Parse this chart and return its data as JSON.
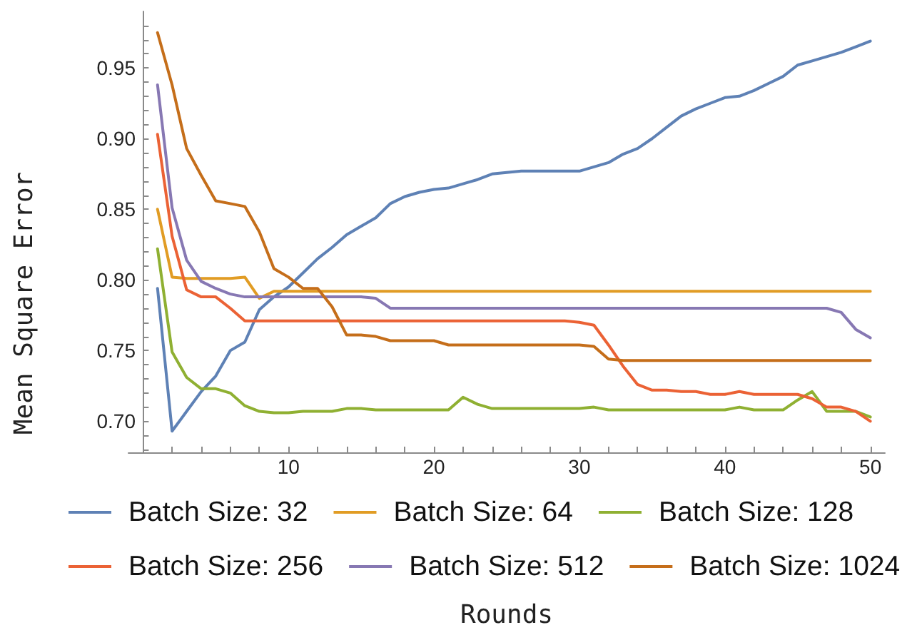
{
  "chart_data": {
    "type": "line",
    "xlabel": "Rounds",
    "ylabel": "Mean Square Error",
    "x": [
      1,
      2,
      3,
      4,
      5,
      6,
      7,
      8,
      9,
      10,
      11,
      12,
      13,
      14,
      15,
      16,
      17,
      18,
      19,
      20,
      21,
      22,
      23,
      24,
      25,
      26,
      27,
      28,
      29,
      30,
      31,
      32,
      33,
      34,
      35,
      36,
      37,
      38,
      39,
      40,
      41,
      42,
      43,
      44,
      45,
      46,
      47,
      48,
      49,
      50
    ],
    "series": [
      {
        "name": "Batch Size: 32",
        "color": "#5e81b5",
        "values": [
          0.794,
          0.693,
          0.707,
          0.721,
          0.732,
          0.75,
          0.756,
          0.779,
          0.788,
          0.795,
          0.805,
          0.815,
          0.823,
          0.832,
          0.838,
          0.844,
          0.854,
          0.859,
          0.862,
          0.864,
          0.865,
          0.868,
          0.871,
          0.875,
          0.876,
          0.877,
          0.877,
          0.877,
          0.877,
          0.877,
          0.88,
          0.883,
          0.889,
          0.893,
          0.9,
          0.908,
          0.916,
          0.921,
          0.925,
          0.929,
          0.93,
          0.934,
          0.939,
          0.944,
          0.952,
          0.955,
          0.958,
          0.961,
          0.965,
          0.969
        ]
      },
      {
        "name": "Batch Size: 64",
        "color": "#e19c24",
        "values": [
          0.85,
          0.802,
          0.801,
          0.801,
          0.801,
          0.801,
          0.802,
          0.787,
          0.792,
          0.792,
          0.792,
          0.792,
          0.792,
          0.792,
          0.792,
          0.792,
          0.792,
          0.792,
          0.792,
          0.792,
          0.792,
          0.792,
          0.792,
          0.792,
          0.792,
          0.792,
          0.792,
          0.792,
          0.792,
          0.792,
          0.792,
          0.792,
          0.792,
          0.792,
          0.792,
          0.792,
          0.792,
          0.792,
          0.792,
          0.792,
          0.792,
          0.792,
          0.792,
          0.792,
          0.792,
          0.792,
          0.792,
          0.792,
          0.792,
          0.792
        ]
      },
      {
        "name": "Batch Size: 128",
        "color": "#8fb032",
        "values": [
          0.822,
          0.749,
          0.731,
          0.723,
          0.723,
          0.72,
          0.711,
          0.707,
          0.706,
          0.706,
          0.707,
          0.707,
          0.707,
          0.709,
          0.709,
          0.708,
          0.708,
          0.708,
          0.708,
          0.708,
          0.708,
          0.717,
          0.712,
          0.709,
          0.709,
          0.709,
          0.709,
          0.709,
          0.709,
          0.709,
          0.71,
          0.708,
          0.708,
          0.708,
          0.708,
          0.708,
          0.708,
          0.708,
          0.708,
          0.708,
          0.71,
          0.708,
          0.708,
          0.708,
          0.715,
          0.721,
          0.707,
          0.707,
          0.707,
          0.703
        ]
      },
      {
        "name": "Batch Size: 256",
        "color": "#eb6235",
        "values": [
          0.903,
          0.831,
          0.793,
          0.788,
          0.788,
          0.78,
          0.771,
          0.771,
          0.771,
          0.771,
          0.771,
          0.771,
          0.771,
          0.771,
          0.771,
          0.771,
          0.771,
          0.771,
          0.771,
          0.771,
          0.771,
          0.771,
          0.771,
          0.771,
          0.771,
          0.771,
          0.771,
          0.771,
          0.771,
          0.77,
          0.768,
          0.754,
          0.739,
          0.726,
          0.722,
          0.722,
          0.721,
          0.721,
          0.719,
          0.719,
          0.721,
          0.719,
          0.719,
          0.719,
          0.719,
          0.716,
          0.71,
          0.71,
          0.707,
          0.7
        ]
      },
      {
        "name": "Batch Size: 512",
        "color": "#8778b3",
        "values": [
          0.938,
          0.851,
          0.814,
          0.799,
          0.794,
          0.79,
          0.788,
          0.788,
          0.788,
          0.788,
          0.788,
          0.788,
          0.788,
          0.788,
          0.788,
          0.787,
          0.78,
          0.78,
          0.78,
          0.78,
          0.78,
          0.78,
          0.78,
          0.78,
          0.78,
          0.78,
          0.78,
          0.78,
          0.78,
          0.78,
          0.78,
          0.78,
          0.78,
          0.78,
          0.78,
          0.78,
          0.78,
          0.78,
          0.78,
          0.78,
          0.78,
          0.78,
          0.78,
          0.78,
          0.78,
          0.78,
          0.78,
          0.777,
          0.765,
          0.759
        ]
      },
      {
        "name": "Batch Size: 1024",
        "color": "#c56e1a",
        "values": [
          0.975,
          0.938,
          0.893,
          0.874,
          0.856,
          0.854,
          0.852,
          0.834,
          0.808,
          0.802,
          0.794,
          0.794,
          0.781,
          0.761,
          0.761,
          0.76,
          0.757,
          0.757,
          0.757,
          0.757,
          0.754,
          0.754,
          0.754,
          0.754,
          0.754,
          0.754,
          0.754,
          0.754,
          0.754,
          0.754,
          0.753,
          0.744,
          0.743,
          0.743,
          0.743,
          0.743,
          0.743,
          0.743,
          0.743,
          0.743,
          0.743,
          0.743,
          0.743,
          0.743,
          0.743,
          0.743,
          0.743,
          0.743,
          0.743,
          0.743
        ]
      }
    ],
    "xlim": [
      -1,
      51
    ],
    "xticks": [
      {
        "value": 2,
        "label": null
      },
      {
        "value": 4,
        "label": null
      },
      {
        "value": 6,
        "label": null
      },
      {
        "value": 8,
        "label": null
      },
      10,
      {
        "value": 12,
        "label": null
      },
      {
        "value": 14,
        "label": null
      },
      {
        "value": 16,
        "label": null
      },
      {
        "value": 18,
        "label": null
      },
      20,
      {
        "value": 22,
        "label": null
      },
      {
        "value": 24,
        "label": null
      },
      {
        "value": 26,
        "label": null
      },
      {
        "value": 28,
        "label": null
      },
      30,
      {
        "value": 32,
        "label": null
      },
      {
        "value": 34,
        "label": null
      },
      {
        "value": 36,
        "label": null
      },
      {
        "value": 38,
        "label": null
      },
      40,
      {
        "value": 42,
        "label": null
      },
      {
        "value": 44,
        "label": null
      },
      {
        "value": 46,
        "label": null
      },
      {
        "value": 48,
        "label": null
      },
      50
    ],
    "ylim": [
      0.678,
      0.99
    ],
    "yticks": [
      {
        "value": 0.68,
        "label": null
      },
      {
        "value": 0.69,
        "label": null
      },
      {
        "value": 0.7,
        "label": "0.70"
      },
      {
        "value": 0.71,
        "label": null
      },
      {
        "value": 0.72,
        "label": null
      },
      {
        "value": 0.73,
        "label": null
      },
      {
        "value": 0.74,
        "label": null
      },
      0.75,
      {
        "value": 0.76,
        "label": null
      },
      {
        "value": 0.77,
        "label": null
      },
      {
        "value": 0.78,
        "label": null
      },
      {
        "value": 0.79,
        "label": null
      },
      {
        "value": 0.8,
        "label": "0.80"
      },
      {
        "value": 0.81,
        "label": null
      },
      {
        "value": 0.82,
        "label": null
      },
      {
        "value": 0.83,
        "label": null
      },
      {
        "value": 0.84,
        "label": null
      },
      0.85,
      {
        "value": 0.86,
        "label": null
      },
      {
        "value": 0.87,
        "label": null
      },
      {
        "value": 0.88,
        "label": null
      },
      {
        "value": 0.89,
        "label": null
      },
      {
        "value": 0.9,
        "label": "0.90"
      },
      {
        "value": 0.91,
        "label": null
      },
      {
        "value": 0.92,
        "label": null
      },
      {
        "value": 0.93,
        "label": null
      },
      {
        "value": 0.94,
        "label": null
      },
      0.95,
      {
        "value": 0.96,
        "label": null
      },
      {
        "value": 0.97,
        "label": null
      },
      {
        "value": 0.98,
        "label": null
      }
    ],
    "grid": false,
    "legend": "bottom",
    "marker": "none",
    "line_style": "solid"
  }
}
